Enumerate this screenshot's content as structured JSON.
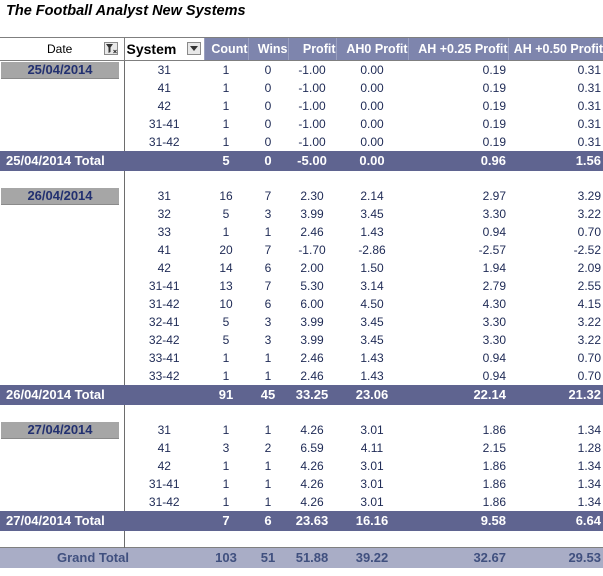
{
  "title": "The Football Analyst New Systems",
  "headers": {
    "date": "Date",
    "system": "System",
    "metrics": [
      "Count",
      "Wins",
      "Profit",
      "AH0 Profit",
      "AH +0.25 Profit",
      "AH +0.50 Profit"
    ]
  },
  "groups": [
    {
      "date": "25/04/2014",
      "rows": [
        [
          "31",
          "1",
          "0",
          "-1.00",
          "0.00",
          "0.19",
          "0.31"
        ],
        [
          "41",
          "1",
          "0",
          "-1.00",
          "0.00",
          "0.19",
          "0.31"
        ],
        [
          "42",
          "1",
          "0",
          "-1.00",
          "0.00",
          "0.19",
          "0.31"
        ],
        [
          "31-41",
          "1",
          "0",
          "-1.00",
          "0.00",
          "0.19",
          "0.31"
        ],
        [
          "31-42",
          "1",
          "0",
          "-1.00",
          "0.00",
          "0.19",
          "0.31"
        ]
      ],
      "total_label": "25/04/2014 Total",
      "total": [
        "5",
        "0",
        "-5.00",
        "0.00",
        "0.96",
        "1.56"
      ]
    },
    {
      "date": "26/04/2014",
      "rows": [
        [
          "31",
          "16",
          "7",
          "2.30",
          "2.14",
          "2.97",
          "3.29"
        ],
        [
          "32",
          "5",
          "3",
          "3.99",
          "3.45",
          "3.30",
          "3.22"
        ],
        [
          "33",
          "1",
          "1",
          "2.46",
          "1.43",
          "0.94",
          "0.70"
        ],
        [
          "41",
          "20",
          "7",
          "-1.70",
          "-2.86",
          "-2.57",
          "-2.52"
        ],
        [
          "42",
          "14",
          "6",
          "2.00",
          "1.50",
          "1.94",
          "2.09"
        ],
        [
          "31-41",
          "13",
          "7",
          "5.30",
          "3.14",
          "2.79",
          "2.55"
        ],
        [
          "31-42",
          "10",
          "6",
          "6.00",
          "4.50",
          "4.30",
          "4.15"
        ],
        [
          "32-41",
          "5",
          "3",
          "3.99",
          "3.45",
          "3.30",
          "3.22"
        ],
        [
          "32-42",
          "5",
          "3",
          "3.99",
          "3.45",
          "3.30",
          "3.22"
        ],
        [
          "33-41",
          "1",
          "1",
          "2.46",
          "1.43",
          "0.94",
          "0.70"
        ],
        [
          "33-42",
          "1",
          "1",
          "2.46",
          "1.43",
          "0.94",
          "0.70"
        ]
      ],
      "total_label": "26/04/2014 Total",
      "total": [
        "91",
        "45",
        "33.25",
        "23.06",
        "22.14",
        "21.32"
      ]
    },
    {
      "date": "27/04/2014",
      "rows": [
        [
          "31",
          "1",
          "1",
          "4.26",
          "3.01",
          "1.86",
          "1.34"
        ],
        [
          "41",
          "3",
          "2",
          "6.59",
          "4.11",
          "2.15",
          "1.28"
        ],
        [
          "42",
          "1",
          "1",
          "4.26",
          "3.01",
          "1.86",
          "1.34"
        ],
        [
          "31-41",
          "1",
          "1",
          "4.26",
          "3.01",
          "1.86",
          "1.34"
        ],
        [
          "31-42",
          "1",
          "1",
          "4.26",
          "3.01",
          "1.86",
          "1.34"
        ]
      ],
      "total_label": "27/04/2014 Total",
      "total": [
        "7",
        "6",
        "23.63",
        "16.16",
        "9.58",
        "6.64"
      ]
    }
  ],
  "grand_total": {
    "label": "Grand Total",
    "values": [
      "103",
      "51",
      "51.88",
      "39.22",
      "32.67",
      "29.53"
    ]
  }
}
